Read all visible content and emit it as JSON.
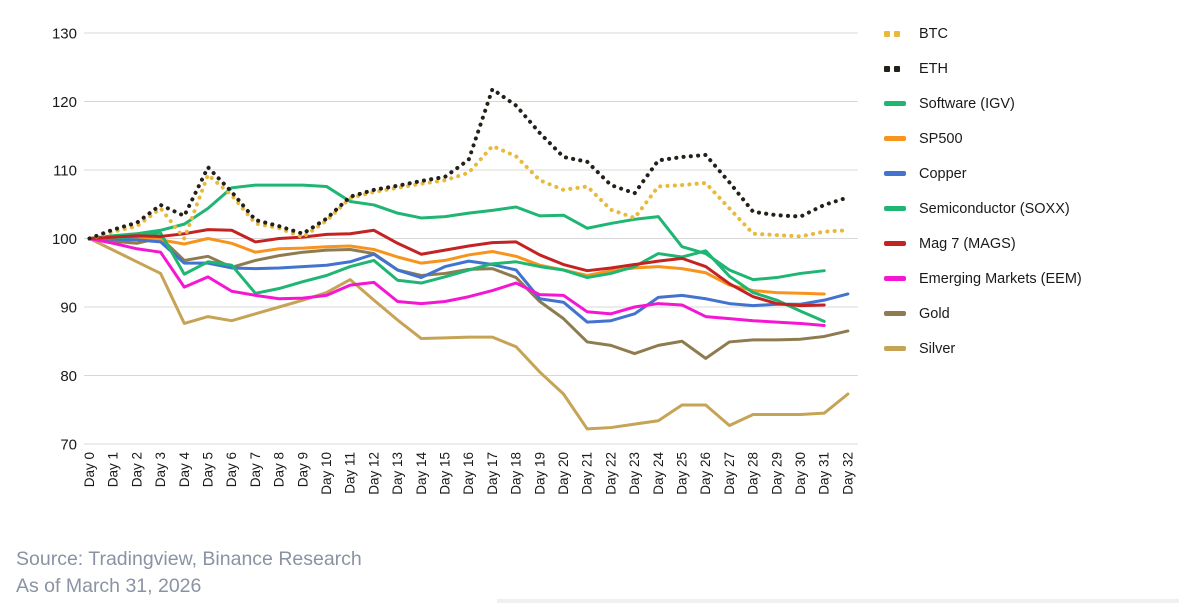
{
  "chart_data": {
    "type": "line",
    "title": "",
    "xlabel": "",
    "ylabel": "",
    "ylim": [
      70,
      130
    ],
    "y_ticks": [
      70,
      80,
      90,
      100,
      110,
      120,
      130
    ],
    "grid": true,
    "legend_position": "right",
    "x_categories": [
      "Day 0",
      "Day 1",
      "Day 2",
      "Day 3",
      "Day 4",
      "Day 5",
      "Day 6",
      "Day 7",
      "Day 8",
      "Day 9",
      "Day 10",
      "Day 11",
      "Day 12",
      "Day 13",
      "Day 14",
      "Day 15",
      "Day 16",
      "Day 17",
      "Day 18",
      "Day 19",
      "Day 20",
      "Day 21",
      "Day 22",
      "Day 23",
      "Day 24",
      "Day 25",
      "Day 26",
      "Day 27",
      "Day 28",
      "Day 29",
      "Day 30",
      "Day 31",
      "Day 32"
    ],
    "series": [
      {
        "name": "BTC",
        "color": "#E8B93B",
        "style": "dotted",
        "values": [
          100,
          101.0,
          101.8,
          104.4,
          100.0,
          109.3,
          106.3,
          102.2,
          101.5,
          100.2,
          102.6,
          105.9,
          106.8,
          107.4,
          108.0,
          108.5,
          109.6,
          113.5,
          112.0,
          108.5,
          107.1,
          107.6,
          104.2,
          103.0,
          107.6,
          107.8,
          108.1,
          104.4,
          100.7,
          100.5,
          100.3,
          101.0,
          101.2
        ]
      },
      {
        "name": "ETH",
        "color": "#242019",
        "style": "dotted",
        "values": [
          100,
          101.3,
          102.3,
          104.9,
          103.3,
          110.4,
          106.8,
          102.7,
          101.8,
          100.7,
          102.9,
          106.1,
          107.1,
          107.7,
          108.4,
          109.0,
          111.5,
          121.8,
          119.4,
          115.4,
          111.9,
          111.2,
          107.8,
          106.6,
          111.4,
          111.9,
          112.2,
          108.2,
          103.9,
          103.4,
          103.2,
          104.9,
          106.0
        ]
      },
      {
        "name": "Software (IGV)",
        "color": "#1FB573",
        "style": "solid",
        "values": [
          100,
          100.4,
          100.7,
          101.2,
          102.1,
          104.4,
          107.4,
          107.8,
          107.8,
          107.8,
          107.6,
          105.4,
          104.9,
          103.7,
          103.0,
          103.2,
          103.7,
          104.1,
          104.6,
          103.3,
          103.4,
          101.5,
          102.2,
          102.8,
          103.2,
          98.8,
          97.8,
          95.4,
          94.0,
          94.3,
          94.9,
          95.3,
          null
        ]
      },
      {
        "name": "SP500",
        "color": "#F7941E",
        "style": "solid",
        "values": [
          100,
          100.1,
          100.2,
          99.8,
          99.2,
          100.0,
          99.3,
          98.0,
          98.5,
          98.6,
          98.8,
          98.9,
          98.4,
          97.3,
          96.4,
          96.8,
          97.6,
          98.1,
          97.4,
          96.1,
          95.4,
          94.6,
          95.3,
          95.7,
          95.9,
          95.6,
          95.0,
          93.2,
          92.4,
          92.1,
          92.0,
          91.9,
          null
        ]
      },
      {
        "name": "Copper",
        "color": "#4273CE",
        "style": "solid",
        "values": [
          100,
          99.9,
          99.8,
          99.5,
          96.4,
          96.4,
          95.7,
          95.6,
          95.7,
          95.9,
          96.1,
          96.6,
          97.7,
          95.4,
          94.3,
          95.9,
          96.7,
          96.2,
          95.4,
          91.2,
          90.7,
          87.8,
          88.0,
          89.0,
          91.4,
          91.7,
          91.2,
          90.5,
          90.2,
          90.4,
          90.4,
          91.0,
          91.9
        ]
      },
      {
        "name": "Semiconductor (SOXX)",
        "color": "#1FB573",
        "style": "solid",
        "values": [
          100,
          100.1,
          100.3,
          100.8,
          94.8,
          96.6,
          96.1,
          92.0,
          92.7,
          93.7,
          94.6,
          95.9,
          96.8,
          93.9,
          93.5,
          94.4,
          95.4,
          96.3,
          96.6,
          95.9,
          95.4,
          94.3,
          94.9,
          95.9,
          97.8,
          97.3,
          98.2,
          94.5,
          92.1,
          91.0,
          89.4,
          87.9,
          null
        ]
      },
      {
        "name": "Mag 7 (MAGS)",
        "color": "#C32322",
        "style": "solid",
        "values": [
          100,
          100.2,
          100.4,
          100.3,
          100.7,
          101.3,
          101.2,
          99.5,
          100.0,
          100.2,
          100.6,
          100.7,
          101.2,
          99.3,
          97.7,
          98.3,
          98.9,
          99.4,
          99.5,
          97.6,
          96.2,
          95.3,
          95.7,
          96.2,
          96.7,
          97.1,
          95.9,
          93.4,
          91.5,
          90.5,
          90.2,
          90.3,
          null
        ]
      },
      {
        "name": "Emerging Markets (EEM)",
        "color": "#F516D4",
        "style": "solid",
        "values": [
          100,
          99.3,
          98.5,
          98.0,
          92.9,
          94.4,
          92.3,
          91.7,
          91.2,
          91.3,
          91.7,
          93.2,
          93.6,
          90.8,
          90.5,
          90.8,
          91.5,
          92.4,
          93.5,
          91.8,
          91.7,
          89.3,
          89.0,
          90.0,
          90.5,
          90.3,
          88.6,
          88.3,
          88.0,
          87.8,
          87.6,
          87.3,
          null
        ]
      },
      {
        "name": "Gold",
        "color": "#8E7C50",
        "style": "solid",
        "values": [
          100,
          99.6,
          99.3,
          100.1,
          96.8,
          97.4,
          95.8,
          96.8,
          97.5,
          98.0,
          98.3,
          98.4,
          97.8,
          95.4,
          94.6,
          94.9,
          95.5,
          95.6,
          94.3,
          90.8,
          88.3,
          84.9,
          84.4,
          83.2,
          84.4,
          85.0,
          82.5,
          84.9,
          85.2,
          85.2,
          85.3,
          85.7,
          86.5
        ]
      },
      {
        "name": "Silver",
        "color": "#C6A355",
        "style": "solid",
        "values": [
          100,
          98.3,
          96.6,
          94.9,
          87.6,
          88.6,
          88.0,
          89.0,
          90.0,
          91.0,
          92.1,
          94.0,
          91.0,
          88.1,
          85.4,
          85.5,
          85.6,
          85.6,
          84.2,
          80.5,
          77.3,
          72.2,
          72.4,
          72.9,
          73.4,
          75.7,
          75.7,
          72.7,
          74.3,
          74.3,
          74.3,
          74.5,
          77.3
        ]
      }
    ],
    "draw_order": [
      9,
      8,
      3,
      4,
      5,
      2,
      7,
      6,
      0,
      1
    ],
    "grid_color": "#d8d8d8"
  },
  "footer": {
    "source_line1": "Source: Tradingview, Binance Research",
    "source_line2": "As of March 31, 2026"
  }
}
